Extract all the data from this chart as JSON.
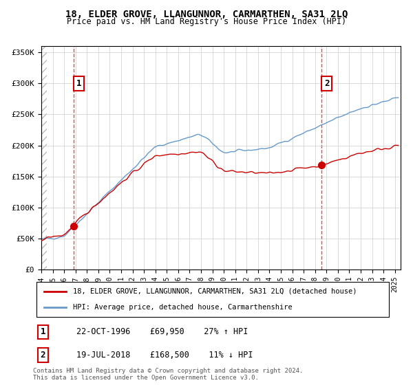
{
  "title": "18, ELDER GROVE, LLANGUNNOR, CARMARTHEN, SA31 2LQ",
  "subtitle": "Price paid vs. HM Land Registry's House Price Index (HPI)",
  "xlim_start": 1994.0,
  "xlim_end": 2025.5,
  "ylim_min": 0,
  "ylim_max": 360000,
  "yticks": [
    0,
    50000,
    100000,
    150000,
    200000,
    250000,
    300000,
    350000
  ],
  "ytick_labels": [
    "£0",
    "£50K",
    "£100K",
    "£150K",
    "£200K",
    "£250K",
    "£300K",
    "£350K"
  ],
  "xticks": [
    1994,
    1995,
    1996,
    1997,
    1998,
    1999,
    2000,
    2001,
    2002,
    2003,
    2004,
    2005,
    2006,
    2007,
    2008,
    2009,
    2010,
    2011,
    2012,
    2013,
    2014,
    2015,
    2016,
    2017,
    2018,
    2019,
    2020,
    2021,
    2022,
    2023,
    2024,
    2025
  ],
  "sale1_x": 1996.81,
  "sale1_y": 69950,
  "sale1_label": "1",
  "sale1_annotation": "22-OCT-1996    £69,950    27% ↑ HPI",
  "sale2_x": 2018.54,
  "sale2_y": 168500,
  "sale2_label": "2",
  "sale2_annotation": "19-JUL-2018    £168,500    11% ↓ HPI",
  "legend_line1": "18, ELDER GROVE, LLANGUNNOR, CARMARTHEN, SA31 2LQ (detached house)",
  "legend_line2": "HPI: Average price, detached house, Carmarthenshire",
  "footer": "Contains HM Land Registry data © Crown copyright and database right 2024.\nThis data is licensed under the Open Government Licence v3.0.",
  "red_color": "#cc0000",
  "blue_color": "#6699cc",
  "bg_hatch_color": "#dddddd"
}
